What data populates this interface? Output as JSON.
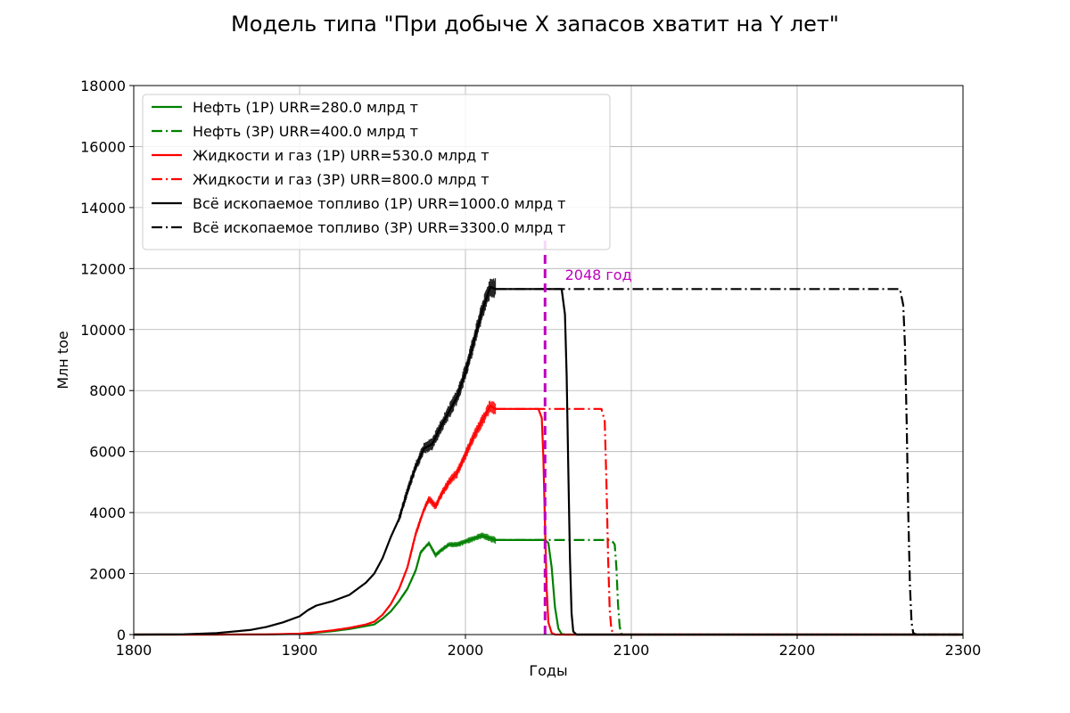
{
  "chart_data": {
    "type": "line",
    "title": "Модель типа \"При добыче X запасов хватит на Y лет\"",
    "xlabel": "Годы",
    "ylabel": "Млн toe",
    "xlim": [
      1800,
      2300
    ],
    "ylim": [
      0,
      18000
    ],
    "xticks": [
      1800,
      1900,
      2000,
      2100,
      2200,
      2300
    ],
    "yticks": [
      0,
      2000,
      4000,
      6000,
      8000,
      10000,
      12000,
      14000,
      16000,
      18000
    ],
    "grid": true,
    "legend_position": "top-left",
    "colors": {
      "oil": "#008000",
      "liquids": "#ff0000",
      "fossil": "#000000",
      "marker": "#bf00bf"
    },
    "series": [
      {
        "name": "Нефть (1P) URR=280.0 млрд т",
        "color": "#008000",
        "dash": "solid",
        "points": [
          [
            1800,
            0
          ],
          [
            1850,
            0
          ],
          [
            1880,
            5
          ],
          [
            1900,
            20
          ],
          [
            1910,
            60
          ],
          [
            1920,
            110
          ],
          [
            1930,
            180
          ],
          [
            1940,
            280
          ],
          [
            1945,
            330
          ],
          [
            1950,
            520
          ],
          [
            1955,
            760
          ],
          [
            1960,
            1100
          ],
          [
            1965,
            1500
          ],
          [
            1970,
            2100
          ],
          [
            1973,
            2700
          ],
          [
            1978,
            3000
          ],
          [
            1982,
            2600
          ],
          [
            1985,
            2750
          ],
          [
            1990,
            2950
          ],
          [
            1995,
            2950
          ],
          [
            2000,
            3050
          ],
          [
            2005,
            3150
          ],
          [
            2010,
            3250
          ],
          [
            2015,
            3150
          ],
          [
            2018,
            3100
          ],
          [
            2048,
            3100
          ],
          [
            2050,
            3000
          ],
          [
            2052,
            2200
          ],
          [
            2054,
            900
          ],
          [
            2056,
            200
          ],
          [
            2058,
            20
          ],
          [
            2060,
            0
          ],
          [
            2300,
            0
          ]
        ]
      },
      {
        "name": "Нефть (3P) URR=400.0 млрд т",
        "color": "#008000",
        "dash": "dashdot",
        "points": [
          [
            2018,
            3100
          ],
          [
            2088,
            3100
          ],
          [
            2090,
            2950
          ],
          [
            2091,
            2200
          ],
          [
            2092,
            1000
          ],
          [
            2093,
            250
          ],
          [
            2094,
            30
          ],
          [
            2095,
            0
          ],
          [
            2300,
            0
          ]
        ]
      },
      {
        "name": "Жидкости и газ (1P) URR=530.0 млрд т",
        "color": "#ff0000",
        "dash": "solid",
        "points": [
          [
            1800,
            0
          ],
          [
            1850,
            0
          ],
          [
            1880,
            5
          ],
          [
            1900,
            30
          ],
          [
            1910,
            80
          ],
          [
            1920,
            140
          ],
          [
            1930,
            220
          ],
          [
            1940,
            330
          ],
          [
            1945,
            420
          ],
          [
            1950,
            650
          ],
          [
            1955,
            1000
          ],
          [
            1960,
            1500
          ],
          [
            1965,
            2200
          ],
          [
            1970,
            3300
          ],
          [
            1975,
            4100
          ],
          [
            1978,
            4450
          ],
          [
            1982,
            4200
          ],
          [
            1985,
            4550
          ],
          [
            1990,
            5000
          ],
          [
            1995,
            5300
          ],
          [
            2000,
            5900
          ],
          [
            2005,
            6500
          ],
          [
            2010,
            7000
          ],
          [
            2015,
            7500
          ],
          [
            2018,
            7400
          ],
          [
            2044,
            7400
          ],
          [
            2046,
            7100
          ],
          [
            2047,
            5800
          ],
          [
            2048,
            3500
          ],
          [
            2049,
            1500
          ],
          [
            2050,
            400
          ],
          [
            2052,
            50
          ],
          [
            2054,
            0
          ],
          [
            2300,
            0
          ]
        ]
      },
      {
        "name": "Жидкости и газ (3P) URR=800.0 млрд т",
        "color": "#ff0000",
        "dash": "dashdot",
        "points": [
          [
            2018,
            7400
          ],
          [
            2082,
            7400
          ],
          [
            2084,
            7000
          ],
          [
            2085,
            5000
          ],
          [
            2086,
            2500
          ],
          [
            2087,
            800
          ],
          [
            2088,
            150
          ],
          [
            2090,
            0
          ],
          [
            2300,
            0
          ]
        ]
      },
      {
        "name": "Всё ископаемое топливо (1P) URR=1000.0 млрд т",
        "color": "#000000",
        "dash": "solid",
        "points": [
          [
            1800,
            0
          ],
          [
            1830,
            10
          ],
          [
            1850,
            50
          ],
          [
            1870,
            150
          ],
          [
            1880,
            250
          ],
          [
            1890,
            400
          ],
          [
            1900,
            600
          ],
          [
            1905,
            800
          ],
          [
            1910,
            950
          ],
          [
            1920,
            1100
          ],
          [
            1930,
            1300
          ],
          [
            1940,
            1700
          ],
          [
            1945,
            2000
          ],
          [
            1950,
            2500
          ],
          [
            1955,
            3200
          ],
          [
            1960,
            3800
          ],
          [
            1965,
            4700
          ],
          [
            1970,
            5500
          ],
          [
            1975,
            6100
          ],
          [
            1980,
            6250
          ],
          [
            1985,
            6800
          ],
          [
            1990,
            7300
          ],
          [
            1995,
            7800
          ],
          [
            2000,
            8600
          ],
          [
            2005,
            9600
          ],
          [
            2010,
            10600
          ],
          [
            2015,
            11400
          ],
          [
            2018,
            11330
          ],
          [
            2058,
            11330
          ],
          [
            2060,
            10500
          ],
          [
            2061,
            8500
          ],
          [
            2062,
            5500
          ],
          [
            2063,
            2500
          ],
          [
            2064,
            700
          ],
          [
            2065,
            100
          ],
          [
            2067,
            0
          ],
          [
            2300,
            0
          ]
        ]
      },
      {
        "name": "Всё ископаемое топливо (3P) URR=3300.0 млрд т",
        "color": "#000000",
        "dash": "dashdot",
        "points": [
          [
            2018,
            11330
          ],
          [
            2262,
            11330
          ],
          [
            2264,
            10800
          ],
          [
            2265,
            9500
          ],
          [
            2266,
            7000
          ],
          [
            2267,
            4000
          ],
          [
            2268,
            1600
          ],
          [
            2269,
            400
          ],
          [
            2270,
            50
          ],
          [
            2272,
            0
          ],
          [
            2300,
            0
          ]
        ]
      }
    ],
    "noise_series": [
      {
        "color": "#008000",
        "from": 1960,
        "to": 2018,
        "amplitude": 120
      },
      {
        "color": "#ff0000",
        "from": 1965,
        "to": 2018,
        "amplitude": 220
      },
      {
        "color": "#000000",
        "from": 1960,
        "to": 2018,
        "amplitude": 350
      }
    ],
    "vline": {
      "x": 2048,
      "color": "#bf00bf",
      "ymax": 13000
    },
    "annotation": {
      "text": "2048 год",
      "x": 2060,
      "y": 11800,
      "color": "#bf00bf"
    }
  }
}
